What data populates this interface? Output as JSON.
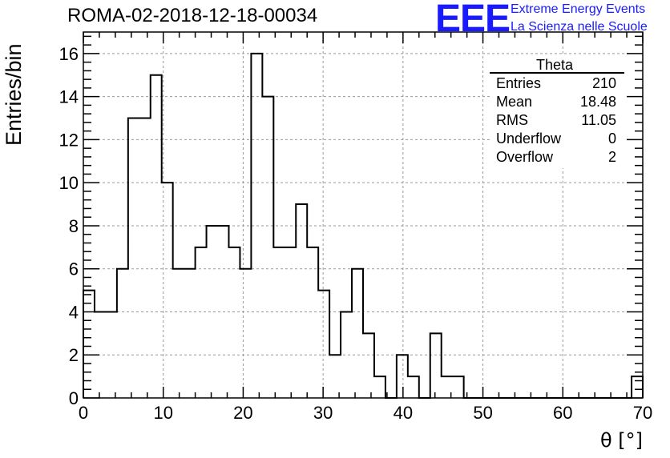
{
  "header": {
    "run_title": "ROMA-02-2018-12-18-00034",
    "logo_text": "EEE",
    "logo_line1": "Extreme Energy Events",
    "logo_line2": "La Scienza nelle Scuole",
    "logo_color": "#1a1aff"
  },
  "stats": {
    "name": "Theta",
    "rows": [
      {
        "label": "Entries",
        "value": "210"
      },
      {
        "label": "Mean",
        "value": "18.48"
      },
      {
        "label": "RMS",
        "value": "11.05"
      },
      {
        "label": "Underflow",
        "value": "0"
      },
      {
        "label": "Overflow",
        "value": "2"
      }
    ]
  },
  "chart_data": {
    "type": "histogram",
    "xlabel": "θ [°]",
    "ylabel": "Entries/bin",
    "xlim": [
      0,
      70
    ],
    "ylim": [
      0,
      17
    ],
    "x_ticks": [
      0,
      10,
      20,
      30,
      40,
      50,
      60,
      70
    ],
    "y_ticks": [
      0,
      2,
      4,
      6,
      8,
      10,
      12,
      14,
      16
    ],
    "grid": true,
    "bin_width": 1.4,
    "bin_counts": [
      5,
      4,
      4,
      6,
      13,
      13,
      15,
      10,
      6,
      6,
      7,
      8,
      8,
      7,
      6,
      16,
      14,
      7,
      7,
      9,
      7,
      5,
      2,
      4,
      6,
      3,
      1,
      0,
      2,
      1,
      0,
      3,
      1,
      1,
      0,
      0,
      0,
      0,
      0,
      0,
      0,
      0,
      0,
      0,
      0,
      0,
      0,
      0,
      0,
      1
    ]
  }
}
